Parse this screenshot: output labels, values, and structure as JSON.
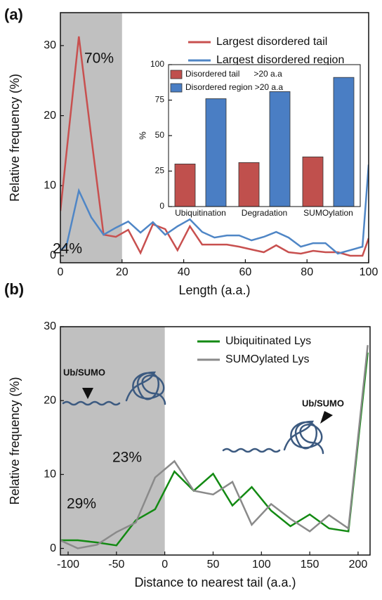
{
  "chart_data": [
    {
      "type": "line",
      "panel_label": "(a)",
      "xlabel": "Length (a.a.)",
      "ylabel": "Relative frequency (%)",
      "xlim": [
        0,
        100
      ],
      "ylim": [
        -1,
        34.7
      ],
      "xticks": [
        0,
        20,
        40,
        60,
        80,
        100
      ],
      "yticks": [
        0,
        10,
        20,
        30
      ],
      "shaded_xrange": [
        0,
        20
      ],
      "shade_color": "#c0c0c0",
      "legend": "upper right",
      "x": [
        0,
        2,
        6,
        10,
        14,
        18,
        22,
        26,
        30,
        34,
        38,
        42,
        46,
        50,
        54,
        58,
        62,
        66,
        70,
        74,
        78,
        82,
        86,
        90,
        94,
        98,
        100
      ],
      "series": [
        {
          "name": "Largest disordered tail",
          "color": "#c8504f",
          "values": [
            6.4,
            14.8,
            31.3,
            17,
            3,
            2.7,
            3.7,
            0.4,
            4.5,
            3.8,
            0.8,
            4.2,
            1.6,
            1.6,
            1.6,
            1.3,
            0.9,
            0.5,
            1.5,
            0.5,
            0.3,
            0.7,
            0.5,
            0.5,
            0,
            0,
            2.5
          ]
        },
        {
          "name": "Largest disordered region",
          "color": "#4f86c6",
          "values": [
            0.8,
            1.5,
            9.3,
            5.5,
            3,
            4,
            4.9,
            3.3,
            4.8,
            3,
            4.2,
            5.2,
            3.4,
            2.6,
            2.9,
            2.9,
            2.2,
            2.7,
            3.4,
            2.6,
            1.3,
            1.8,
            1.8,
            0.3,
            0.8,
            1.3,
            13
          ]
        }
      ],
      "annotations": [
        {
          "text": "70%",
          "color": "#c8504f"
        },
        {
          "text": "24%",
          "color": "#3f6fa8"
        }
      ]
    },
    {
      "type": "bar",
      "ylabel": "%",
      "categories": [
        "Ubiquitination",
        "Degradation",
        "SUMOylation"
      ],
      "ylim": [
        0,
        100
      ],
      "yticks": [
        0,
        25,
        50,
        75,
        100
      ],
      "legend": "upper left",
      "series": [
        {
          "name": "Disordered tail      >20 a.a",
          "color": "#c0504d",
          "values": [
            30,
            31,
            35
          ]
        },
        {
          "name": "Disordered region >20 a.a",
          "color": "#4a7ec4",
          "values": [
            76,
            81,
            91
          ]
        }
      ]
    },
    {
      "type": "line",
      "panel_label": "(b)",
      "xlabel": "Distance to nearest tail (a.a.)",
      "ylabel": "Relative frequency (%)",
      "xlim": [
        -108,
        212.4
      ],
      "ylim": [
        -0.9,
        30
      ],
      "xticks": [
        -100,
        -50,
        0,
        50,
        100,
        150,
        200
      ],
      "yticks": [
        0,
        10,
        20,
        30
      ],
      "shaded_xrange": [
        -108,
        0
      ],
      "shade_color": "#c0c0c0",
      "legend": "upper right",
      "x": [
        -110,
        -90,
        -70,
        -50,
        -30,
        -10,
        10,
        30,
        50,
        70,
        90,
        110,
        130,
        150,
        170,
        190,
        210
      ],
      "series": [
        {
          "name": "Ubiquitinated Lys",
          "color": "#138a13",
          "values": [
            1.1,
            1.1,
            0.8,
            0.4,
            3.8,
            5.3,
            10.4,
            7.8,
            10.1,
            5.8,
            8.3,
            5.1,
            3.0,
            4.6,
            2.7,
            2.3,
            26.5
          ]
        },
        {
          "name": "SUMOylated Lys",
          "color": "#8a8a8a",
          "values": [
            1.2,
            0,
            0.5,
            2.2,
            3.5,
            9.6,
            11.8,
            7.8,
            7.3,
            9.0,
            3.2,
            6.0,
            4.0,
            2.3,
            4.5,
            2.7,
            27.5
          ]
        }
      ],
      "annotations": [
        {
          "text": "23%",
          "color": "#138a13"
        },
        {
          "text": "29%",
          "color": "#666666"
        },
        {
          "text": "Ub/SUMO",
          "color": "#000000"
        },
        {
          "text": "Ub/SUMO",
          "color": "#000000"
        }
      ]
    }
  ]
}
